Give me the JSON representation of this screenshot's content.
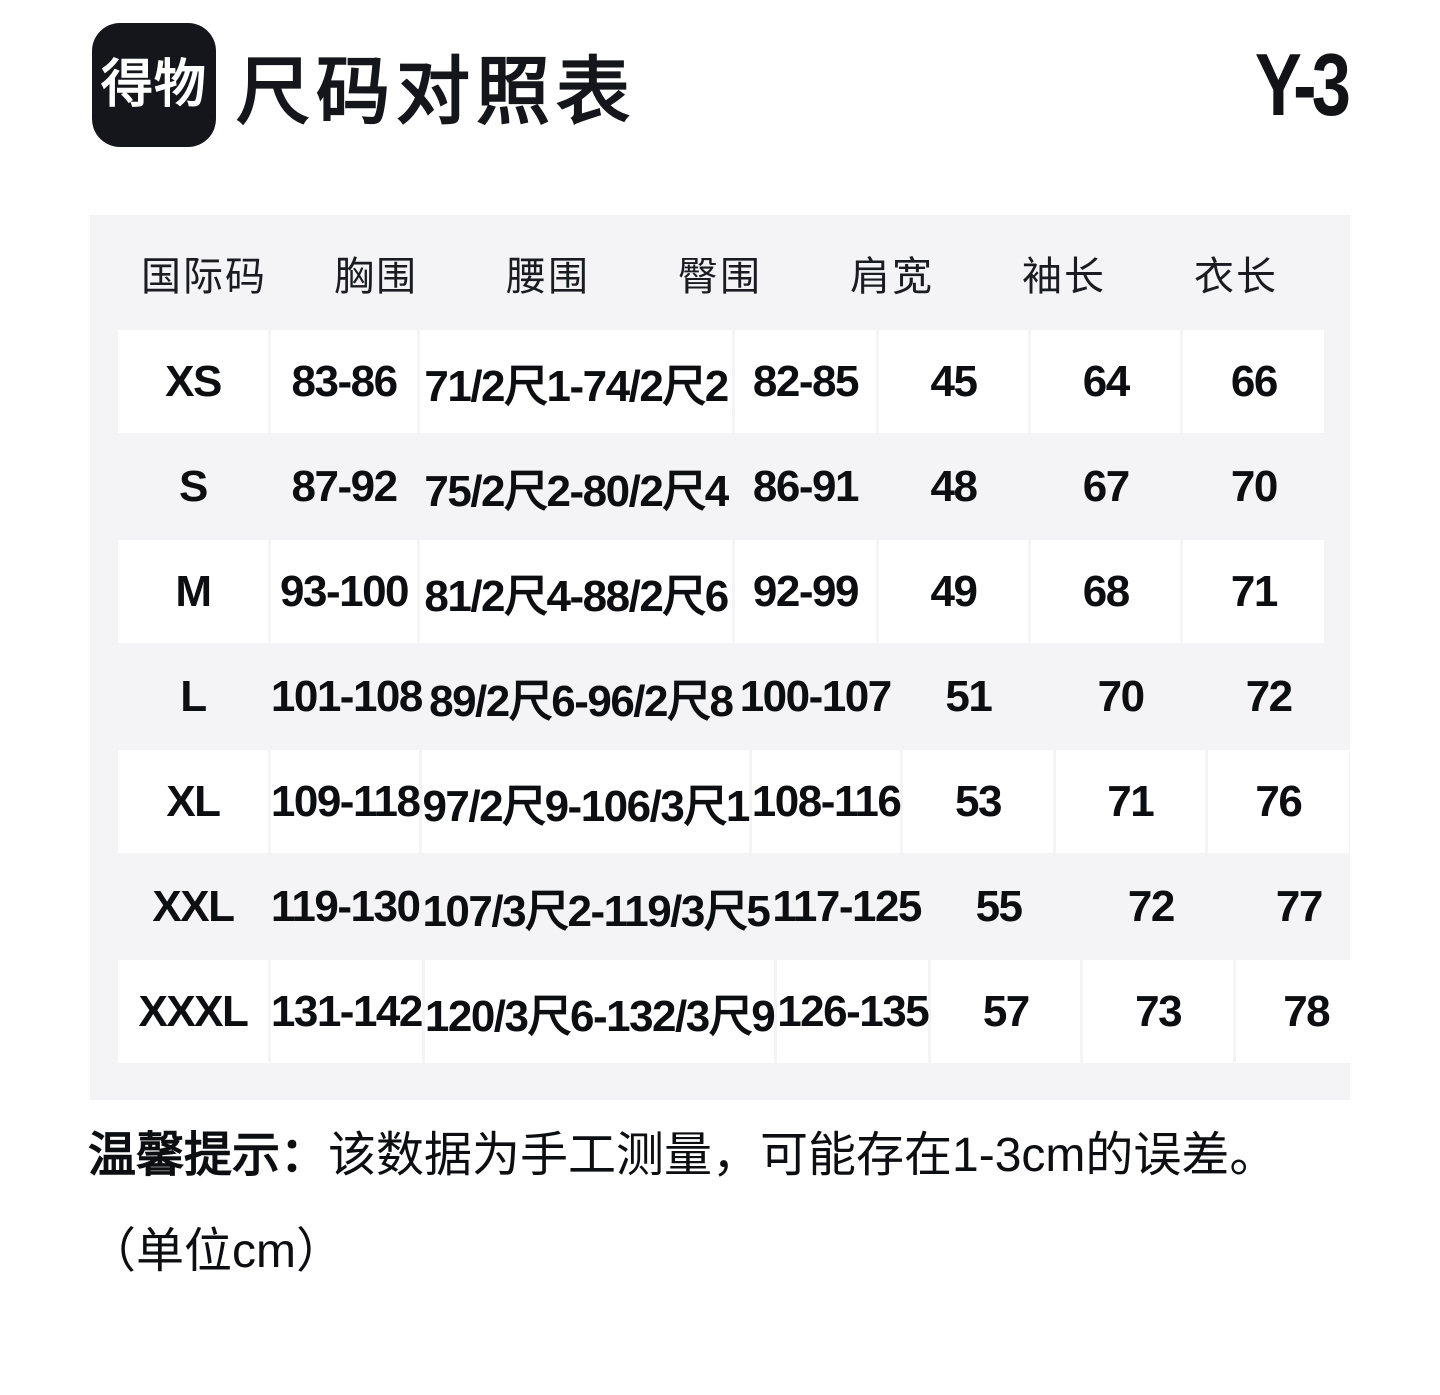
{
  "header": {
    "app_badge": "得物",
    "title": "尺码对照表",
    "brand": "Y-3"
  },
  "table": {
    "columns": [
      "国际码",
      "胸围",
      "腰围",
      "臀围",
      "肩宽",
      "袖长",
      "衣长"
    ],
    "rows": [
      [
        "XS",
        "83-86",
        "71/2尺1-74/2尺2",
        "82-85",
        "45",
        "64",
        "66"
      ],
      [
        "S",
        "87-92",
        "75/2尺2-80/2尺4",
        "86-91",
        "48",
        "67",
        "70"
      ],
      [
        "M",
        "93-100",
        "81/2尺4-88/2尺6",
        "92-99",
        "49",
        "68",
        "71"
      ],
      [
        "L",
        "101-108",
        "89/2尺6-96/2尺8",
        "100-107",
        "51",
        "70",
        "72"
      ],
      [
        "XL",
        "109-118",
        "97/2尺9-106/3尺1",
        "108-116",
        "53",
        "71",
        "76"
      ],
      [
        "XXL",
        "119-130",
        "107/3尺2-119/3尺5",
        "117-125",
        "55",
        "72",
        "77"
      ],
      [
        "XXXL",
        "131-142",
        "120/3尺6-132/3尺9",
        "126-135",
        "57",
        "73",
        "78"
      ]
    ]
  },
  "note": {
    "label": "温馨提示：",
    "text": "该数据为手工测量，可能存在1-3cm的误差。",
    "unit": "（单位cm）"
  },
  "colors": {
    "page_bg": "#ffffff",
    "table_bg": "#f4f4f7",
    "cell_bg": "#ffffff",
    "text": "#15161b",
    "badge_bg": "#15161b"
  }
}
